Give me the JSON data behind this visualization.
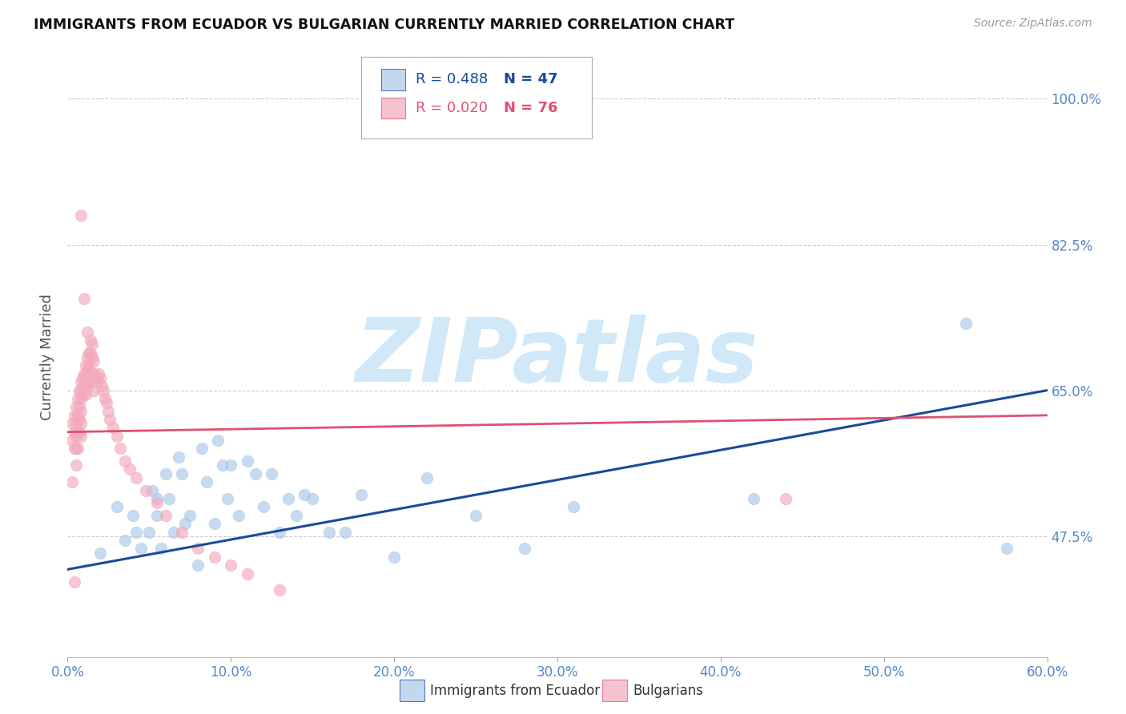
{
  "title": "IMMIGRANTS FROM ECUADOR VS BULGARIAN CURRENTLY MARRIED CORRELATION CHART",
  "source": "Source: ZipAtlas.com",
  "ylabel": "Currently Married",
  "xlabel_ticks": [
    "0.0%",
    "10.0%",
    "20.0%",
    "30.0%",
    "40.0%",
    "50.0%",
    "60.0%"
  ],
  "xlabel_vals": [
    0.0,
    0.1,
    0.2,
    0.3,
    0.4,
    0.5,
    0.6
  ],
  "ylabel_ticks": [
    "100.0%",
    "82.5%",
    "65.0%",
    "47.5%"
  ],
  "ylabel_vals": [
    1.0,
    0.825,
    0.65,
    0.475
  ],
  "xlim": [
    0.0,
    0.6
  ],
  "ylim": [
    0.33,
    1.05
  ],
  "grid_color": "#cccccc",
  "legend_label_blue": "Immigrants from Ecuador",
  "legend_label_pink": "Bulgarians",
  "legend_R_blue": "R = 0.488",
  "legend_N_blue": "N = 47",
  "legend_R_pink": "R = 0.020",
  "legend_N_pink": "N = 76",
  "color_blue": "#aac8e8",
  "color_pink": "#f4a8bc",
  "color_blue_line": "#1a4a9a",
  "color_pink_line": "#e05070",
  "color_tick_label": "#5588cc",
  "watermark_color": "#d0e8f8",
  "ecuador_x": [
    0.02,
    0.03,
    0.035,
    0.04,
    0.042,
    0.045,
    0.05,
    0.052,
    0.055,
    0.055,
    0.057,
    0.06,
    0.062,
    0.065,
    0.068,
    0.07,
    0.072,
    0.075,
    0.08,
    0.082,
    0.085,
    0.09,
    0.092,
    0.095,
    0.098,
    0.1,
    0.105,
    0.11,
    0.115,
    0.12,
    0.125,
    0.13,
    0.135,
    0.14,
    0.145,
    0.15,
    0.16,
    0.17,
    0.18,
    0.2,
    0.22,
    0.25,
    0.28,
    0.31,
    0.42,
    0.55,
    0.575
  ],
  "ecuador_y": [
    0.455,
    0.51,
    0.47,
    0.5,
    0.48,
    0.46,
    0.48,
    0.53,
    0.52,
    0.5,
    0.46,
    0.55,
    0.52,
    0.48,
    0.57,
    0.55,
    0.49,
    0.5,
    0.44,
    0.58,
    0.54,
    0.49,
    0.59,
    0.56,
    0.52,
    0.56,
    0.5,
    0.565,
    0.55,
    0.51,
    0.55,
    0.48,
    0.52,
    0.5,
    0.525,
    0.52,
    0.48,
    0.48,
    0.525,
    0.45,
    0.545,
    0.5,
    0.46,
    0.51,
    0.52,
    0.73,
    0.46
  ],
  "bulgarian_x": [
    0.003,
    0.003,
    0.004,
    0.004,
    0.004,
    0.005,
    0.005,
    0.005,
    0.005,
    0.005,
    0.006,
    0.006,
    0.006,
    0.006,
    0.007,
    0.007,
    0.007,
    0.007,
    0.008,
    0.008,
    0.008,
    0.008,
    0.008,
    0.008,
    0.009,
    0.009,
    0.01,
    0.01,
    0.011,
    0.011,
    0.011,
    0.012,
    0.012,
    0.012,
    0.013,
    0.013,
    0.013,
    0.014,
    0.014,
    0.015,
    0.015,
    0.015,
    0.016,
    0.016,
    0.016,
    0.017,
    0.018,
    0.019,
    0.02,
    0.021,
    0.022,
    0.023,
    0.024,
    0.025,
    0.026,
    0.028,
    0.03,
    0.032,
    0.035,
    0.038,
    0.042,
    0.048,
    0.055,
    0.06,
    0.07,
    0.08,
    0.09,
    0.1,
    0.11,
    0.13,
    0.008,
    0.01,
    0.012,
    0.44,
    0.003,
    0.004
  ],
  "bulgarian_y": [
    0.59,
    0.61,
    0.62,
    0.6,
    0.58,
    0.63,
    0.61,
    0.595,
    0.58,
    0.56,
    0.64,
    0.62,
    0.6,
    0.58,
    0.65,
    0.63,
    0.615,
    0.6,
    0.66,
    0.65,
    0.64,
    0.625,
    0.61,
    0.595,
    0.665,
    0.645,
    0.67,
    0.655,
    0.68,
    0.665,
    0.645,
    0.69,
    0.675,
    0.655,
    0.695,
    0.68,
    0.66,
    0.71,
    0.695,
    0.705,
    0.69,
    0.67,
    0.685,
    0.67,
    0.65,
    0.665,
    0.66,
    0.67,
    0.665,
    0.655,
    0.65,
    0.64,
    0.635,
    0.625,
    0.615,
    0.605,
    0.595,
    0.58,
    0.565,
    0.555,
    0.545,
    0.53,
    0.515,
    0.5,
    0.48,
    0.46,
    0.45,
    0.44,
    0.43,
    0.41,
    0.86,
    0.76,
    0.72,
    0.52,
    0.54,
    0.42
  ],
  "blue_line_x": [
    0.0,
    0.6
  ],
  "blue_line_y": [
    0.435,
    0.65
  ],
  "pink_line_x": [
    0.0,
    0.6
  ],
  "pink_line_y": [
    0.6,
    0.62
  ]
}
